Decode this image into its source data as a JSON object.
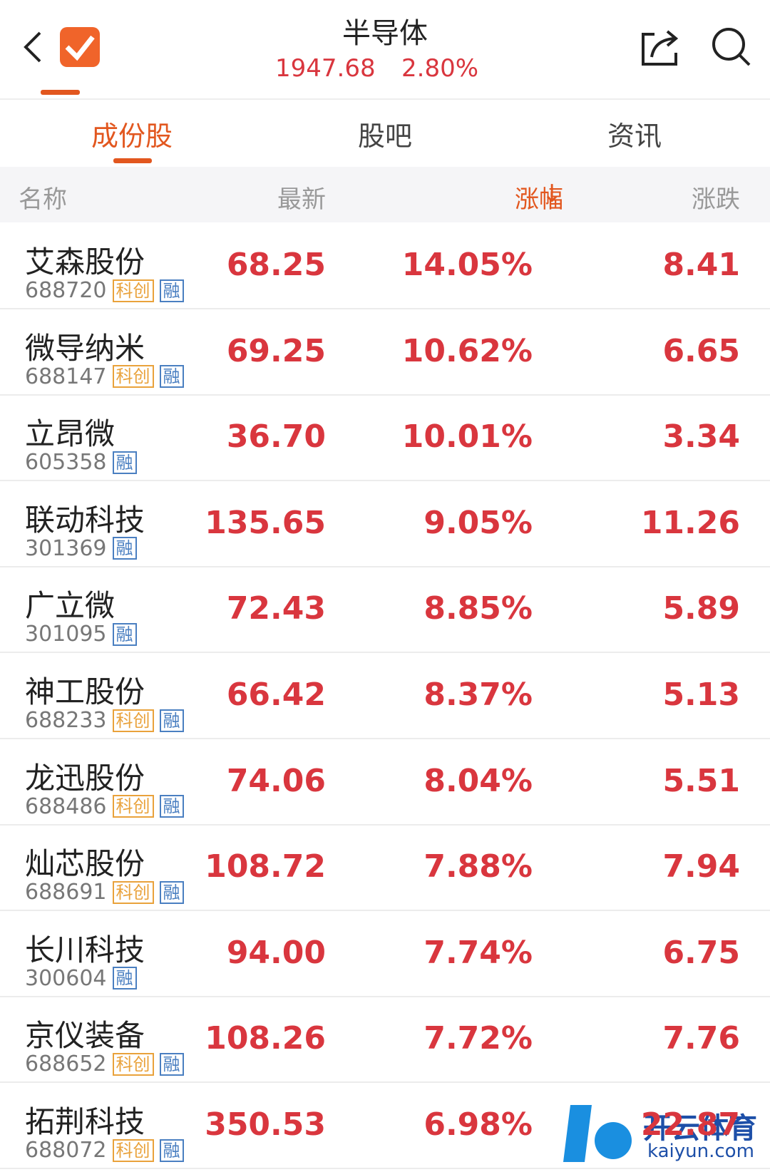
{
  "header": {
    "title": "半导体",
    "index_value": "1947.68",
    "index_change": "2.80%"
  },
  "tabs": [
    "成份股",
    "股吧",
    "资讯"
  ],
  "columns": [
    "名称",
    "最新",
    "涨幅",
    "涨跌"
  ],
  "rows": [
    {
      "name": "艾森股份",
      "code": "688720",
      "tags": [
        "科创",
        "融"
      ],
      "price": "68.25",
      "change_pct": "14.05%",
      "change": "8.41"
    },
    {
      "name": "微导纳米",
      "code": "688147",
      "tags": [
        "科创",
        "融"
      ],
      "price": "69.25",
      "change_pct": "10.62%",
      "change": "6.65"
    },
    {
      "name": "立昂微",
      "code": "605358",
      "tags": [
        "融"
      ],
      "price": "36.70",
      "change_pct": "10.01%",
      "change": "3.34"
    },
    {
      "name": "联动科技",
      "code": "301369",
      "tags": [
        "融"
      ],
      "price": "135.65",
      "change_pct": "9.05%",
      "change": "11.26"
    },
    {
      "name": "广立微",
      "code": "301095",
      "tags": [
        "融"
      ],
      "price": "72.43",
      "change_pct": "8.85%",
      "change": "5.89"
    },
    {
      "name": "神工股份",
      "code": "688233",
      "tags": [
        "科创",
        "融"
      ],
      "price": "66.42",
      "change_pct": "8.37%",
      "change": "5.13"
    },
    {
      "name": "龙迅股份",
      "code": "688486",
      "tags": [
        "科创",
        "融"
      ],
      "price": "74.06",
      "change_pct": "8.04%",
      "change": "5.51"
    },
    {
      "name": "灿芯股份",
      "code": "688691",
      "tags": [
        "科创",
        "融"
      ],
      "price": "108.72",
      "change_pct": "7.88%",
      "change": "7.94"
    },
    {
      "name": "长川科技",
      "code": "300604",
      "tags": [
        "融"
      ],
      "price": "94.00",
      "change_pct": "7.74%",
      "change": "6.75"
    },
    {
      "name": "京仪装备",
      "code": "688652",
      "tags": [
        "科创",
        "融"
      ],
      "price": "108.26",
      "change_pct": "7.72%",
      "change": "7.76"
    },
    {
      "name": "拓荆科技",
      "code": "688072",
      "tags": [
        "科创",
        "融"
      ],
      "price": "350.53",
      "change_pct": "6.98%",
      "change": "22.87"
    }
  ],
  "watermark": {
    "brand": "开云体育",
    "site": "kaiyun.com"
  }
}
